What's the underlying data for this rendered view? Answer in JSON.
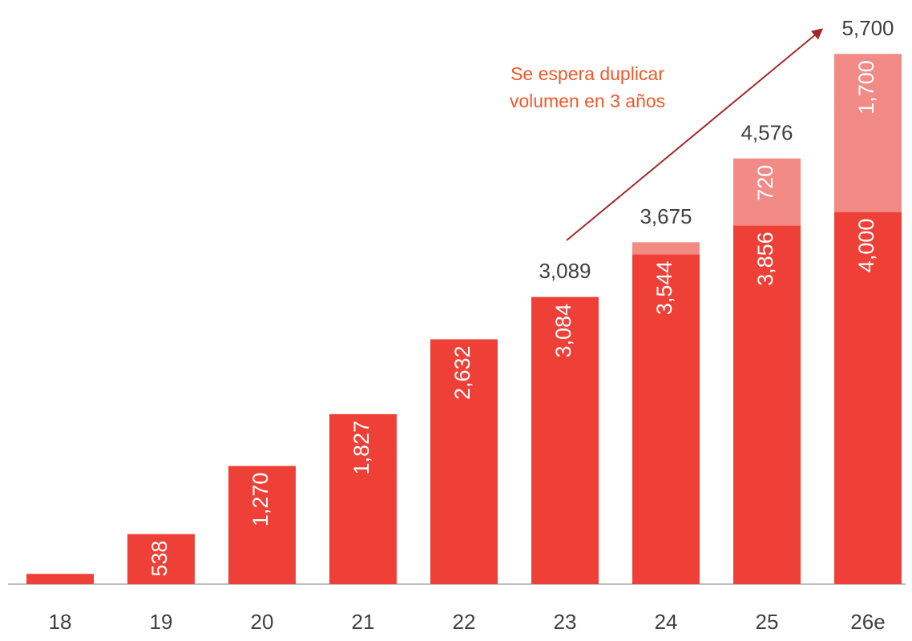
{
  "chart_data": {
    "type": "stacked_bar",
    "categories": [
      "18",
      "19",
      "20",
      "21",
      "22",
      "23",
      "24",
      "25",
      "26e"
    ],
    "series": [
      {
        "color": "#ee4037",
        "values": [
          110,
          538,
          1270,
          1827,
          2632,
          3084,
          3544,
          3856,
          4000
        ],
        "value_labels": [
          null,
          "538",
          "1,270",
          "1,827",
          "2,632",
          "3,084",
          "3,544",
          "3,856",
          "4,000"
        ]
      },
      {
        "color": "#f28b85",
        "values": [
          null,
          null,
          null,
          null,
          null,
          5,
          131,
          720,
          1700
        ],
        "value_labels": [
          null,
          null,
          null,
          null,
          null,
          null,
          null,
          "720",
          "1,700"
        ]
      }
    ],
    "totals": [
      null,
      null,
      null,
      null,
      null,
      3089,
      3675,
      4576,
      5700
    ],
    "total_labels": [
      null,
      null,
      null,
      null,
      null,
      "3,089",
      "3,675",
      "4,576",
      "5,700"
    ],
    "annotation": [
      "Se espera duplicar",
      "volumen en 3 años"
    ],
    "ylim": [
      0,
      6000
    ]
  }
}
